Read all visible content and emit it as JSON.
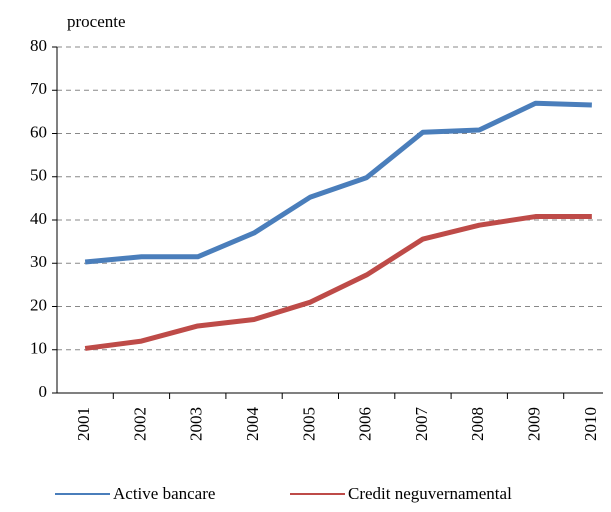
{
  "chart_data": {
    "type": "line",
    "y_label": "procente",
    "categories": [
      "2001",
      "2002",
      "2003",
      "2004",
      "2005",
      "2006",
      "2007",
      "2008",
      "2009",
      "2010"
    ],
    "series": [
      {
        "name": "Active bancare",
        "color": "#4a7ebb",
        "values": [
          30.3,
          31.5,
          31.5,
          37,
          45.3,
          49.8,
          60.3,
          60.8,
          67,
          66.6
        ]
      },
      {
        "name": "Credit neguvernamental",
        "color": "#be4b48",
        "values": [
          10.3,
          12,
          15.5,
          17,
          21,
          27.3,
          35.6,
          38.8,
          40.8,
          40.8
        ]
      }
    ],
    "ylim": [
      0,
      80
    ],
    "yticks": [
      0,
      10,
      20,
      30,
      40,
      50,
      60,
      70,
      80
    ],
    "grid": true,
    "legend": "bottom"
  }
}
